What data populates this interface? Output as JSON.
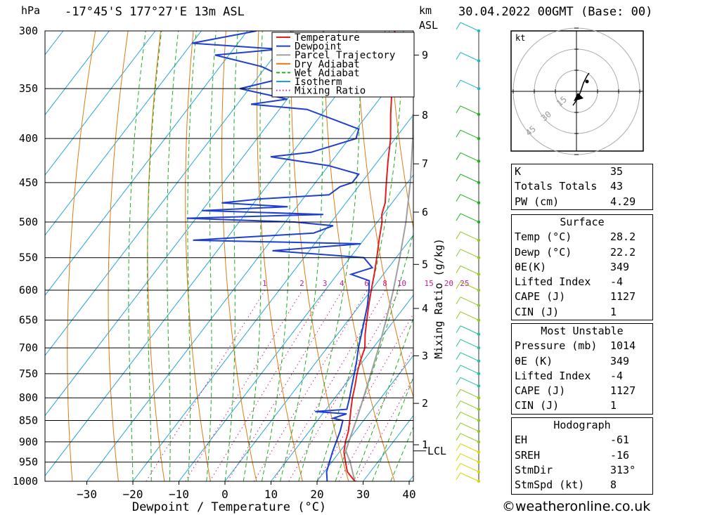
{
  "header": {
    "hpa_label": "hPa",
    "location": "-17°45'S  177°27'E  13m  ASL",
    "km_label": "km",
    "asl_label": "ASL",
    "date": "30.04.2022  00GMT  (Base: 00)"
  },
  "legend": [
    {
      "label": "Temperature",
      "color": "#e02020",
      "style": "solid"
    },
    {
      "label": "Dewpoint",
      "color": "#1f3fd0",
      "style": "solid"
    },
    {
      "label": "Parcel Trajectory",
      "color": "#a0a0a0",
      "style": "solid"
    },
    {
      "label": "Dry Adiabat",
      "color": "#e07a10",
      "style": "solid"
    },
    {
      "label": "Wet Adiabat",
      "color": "#20b020",
      "style": "dashed"
    },
    {
      "label": "Isotherm",
      "color": "#1ea0e0",
      "style": "solid"
    },
    {
      "label": "Mixing Ratio",
      "color": "#c0209a",
      "style": "dotted"
    }
  ],
  "chart_data": {
    "type": "skew-t log-p",
    "xlabel": "Dewpoint / Temperature (°C)",
    "right_axis_label": "Mixing Ratio (g/kg)",
    "pressure_ticks": [
      300,
      350,
      400,
      450,
      500,
      550,
      600,
      650,
      700,
      750,
      800,
      850,
      900,
      950,
      1000
    ],
    "temperature_ticks": [
      -30,
      -20,
      -10,
      0,
      10,
      20,
      30,
      40
    ],
    "km_ticks": [
      {
        "label": "9",
        "p": 320
      },
      {
        "label": "8",
        "p": 376
      },
      {
        "label": "7",
        "p": 428
      },
      {
        "label": "6",
        "p": 487
      },
      {
        "label": "5",
        "p": 560
      },
      {
        "label": "4",
        "p": 630
      },
      {
        "label": "3",
        "p": 715
      },
      {
        "label": "2",
        "p": 812
      },
      {
        "label": "1",
        "p": 907
      }
    ],
    "lcl_label": "LCL",
    "lcl_pressure": 922,
    "mixing_ratio_labels": [
      "1",
      "2",
      "3",
      "4",
      "6",
      "8",
      "10",
      "15",
      "20",
      "25"
    ],
    "temperature_profile": [
      [
        1000,
        28.2
      ],
      [
        975,
        25.0
      ],
      [
        950,
        23.0
      ],
      [
        925,
        21.0
      ],
      [
        900,
        19.6
      ],
      [
        875,
        18.5
      ],
      [
        850,
        17.0
      ],
      [
        825,
        15.4
      ],
      [
        800,
        13.8
      ],
      [
        775,
        12.4
      ],
      [
        750,
        10.8
      ],
      [
        725,
        9.4
      ],
      [
        700,
        8.2
      ],
      [
        675,
        6.0
      ],
      [
        650,
        4.0
      ],
      [
        625,
        2.0
      ],
      [
        600,
        0.0
      ],
      [
        575,
        -2.0
      ],
      [
        550,
        -4.2
      ],
      [
        525,
        -6.6
      ],
      [
        500,
        -9.0
      ],
      [
        490,
        -10.3
      ],
      [
        475,
        -11.5
      ],
      [
        450,
        -14.6
      ],
      [
        425,
        -17.8
      ],
      [
        400,
        -21.0
      ],
      [
        375,
        -25.0
      ],
      [
        350,
        -29.0
      ],
      [
        325,
        -33.5
      ],
      [
        300,
        -38.0
      ]
    ],
    "dewpoint_profile": [
      [
        1000,
        22.2
      ],
      [
        975,
        20.5
      ],
      [
        950,
        19.5
      ],
      [
        925,
        18.5
      ],
      [
        900,
        17.6
      ],
      [
        875,
        16.7
      ],
      [
        850,
        15.5
      ],
      [
        845,
        13.0
      ],
      [
        835,
        15.2
      ],
      [
        830,
        8.0
      ],
      [
        825,
        14.5
      ],
      [
        800,
        13.2
      ],
      [
        775,
        11.7
      ],
      [
        750,
        10.2
      ],
      [
        725,
        8.6
      ],
      [
        700,
        6.8
      ],
      [
        675,
        5.2
      ],
      [
        650,
        3.5
      ],
      [
        625,
        1.7
      ],
      [
        600,
        -0.5
      ],
      [
        585,
        -2.0
      ],
      [
        575,
        -7.0
      ],
      [
        565,
        -3.5
      ],
      [
        550,
        -7.0
      ],
      [
        540,
        -28.0
      ],
      [
        530,
        -10.0
      ],
      [
        525,
        -47.0
      ],
      [
        515,
        -22.0
      ],
      [
        505,
        -19.0
      ],
      [
        500,
        -28.0
      ],
      [
        495,
        -52.0
      ],
      [
        490,
        -23.0
      ],
      [
        485,
        -50.0
      ],
      [
        480,
        -32.0
      ],
      [
        475,
        -47.0
      ],
      [
        470,
        -39.0
      ],
      [
        465,
        -25.0
      ],
      [
        455,
        -24.0
      ],
      [
        450,
        -22.0
      ],
      [
        440,
        -22.0
      ],
      [
        430,
        -30.0
      ],
      [
        420,
        -44.0
      ],
      [
        415,
        -36.0
      ],
      [
        400,
        -28.5
      ],
      [
        390,
        -29.5
      ],
      [
        370,
        -44.0
      ],
      [
        365,
        -57.0
      ],
      [
        360,
        -50.0
      ],
      [
        355,
        -56.0
      ],
      [
        350,
        -62.0
      ],
      [
        340,
        -54.0
      ],
      [
        330,
        -61.0
      ],
      [
        320,
        -73.0
      ],
      [
        315,
        -60.0
      ],
      [
        310,
        -80.0
      ],
      [
        300,
        -68.0
      ]
    ],
    "parcel_profile": [
      [
        1000,
        28.2
      ],
      [
        950,
        24.0
      ],
      [
        922,
        21.2
      ],
      [
        900,
        20.3
      ],
      [
        850,
        18.4
      ],
      [
        800,
        16.2
      ],
      [
        750,
        13.8
      ],
      [
        700,
        11.2
      ],
      [
        650,
        8.2
      ],
      [
        600,
        4.8
      ],
      [
        550,
        0.8
      ],
      [
        500,
        -3.8
      ],
      [
        450,
        -9.4
      ],
      [
        400,
        -16.2
      ],
      [
        375,
        -20.2
      ]
    ],
    "hodograph_rings": [
      "15",
      "30",
      "45"
    ],
    "hodograph_unit": "kt"
  },
  "indices": [
    {
      "name": "K",
      "value": "35"
    },
    {
      "name": "Totals Totals",
      "value": "43"
    },
    {
      "name": "PW (cm)",
      "value": "4.29"
    }
  ],
  "surface": {
    "title": "Surface",
    "rows": [
      {
        "name": "Temp (°C)",
        "value": "28.2"
      },
      {
        "name": "Dewp (°C)",
        "value": "22.2"
      },
      {
        "name": "θE(K)",
        "value": "349"
      },
      {
        "name": "Lifted Index",
        "value": "-4"
      },
      {
        "name": "CAPE (J)",
        "value": "1127"
      },
      {
        "name": "CIN (J)",
        "value": "1"
      }
    ]
  },
  "most_unstable": {
    "title": "Most Unstable",
    "rows": [
      {
        "name": "Pressure (mb)",
        "value": "1014"
      },
      {
        "name": "θE (K)",
        "value": "349"
      },
      {
        "name": "Lifted Index",
        "value": "-4"
      },
      {
        "name": "CAPE (J)",
        "value": "1127"
      },
      {
        "name": "CIN (J)",
        "value": "1"
      }
    ]
  },
  "hodograph": {
    "title": "Hodograph",
    "rows": [
      {
        "name": "EH",
        "value": "-61"
      },
      {
        "name": "SREH",
        "value": "-16"
      },
      {
        "name": "StmDir",
        "value": "313°"
      },
      {
        "name": "StmSpd (kt)",
        "value": "8"
      }
    ]
  },
  "credit": "©weatheronline.co.uk"
}
